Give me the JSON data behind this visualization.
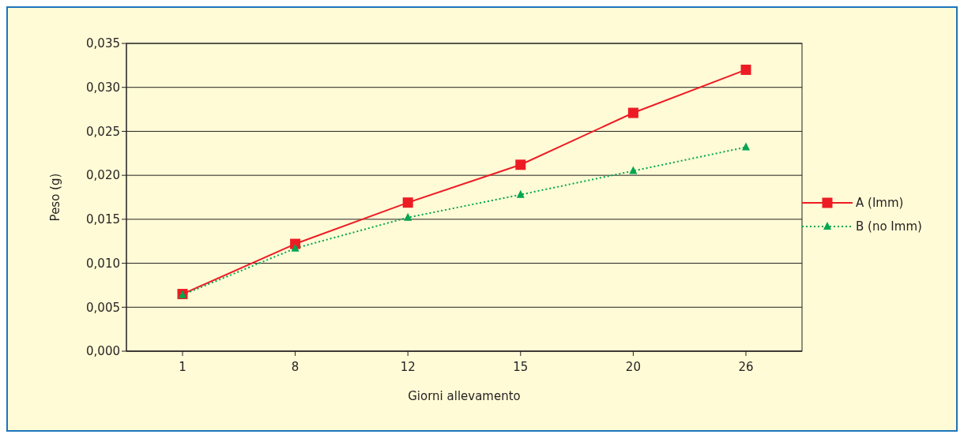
{
  "chart_data": {
    "type": "line",
    "xlabel": "Giorni allevamento",
    "ylabel": "Peso (g)",
    "categories": [
      "1",
      "8",
      "12",
      "15",
      "20",
      "26"
    ],
    "series": [
      {
        "name": "A (Imm)",
        "color": "#ed1c24",
        "marker": "square",
        "line_style": "solid",
        "values": [
          0.0065,
          0.0122,
          0.0169,
          0.0212,
          0.0271,
          0.032
        ]
      },
      {
        "name": "B (no Imm)",
        "color": "#00a651",
        "marker": "triangle",
        "line_style": "dotted",
        "values": [
          0.0064,
          0.0117,
          0.0152,
          0.0178,
          0.0205,
          0.0232
        ]
      }
    ],
    "ylim": [
      0,
      0.035
    ],
    "yticks": [
      {
        "value": 0,
        "label": "0,000"
      },
      {
        "value": 0.005,
        "label": "0,005"
      },
      {
        "value": 0.01,
        "label": "0,010"
      },
      {
        "value": 0.015,
        "label": "0,015"
      },
      {
        "value": 0.02,
        "label": "0,020"
      },
      {
        "value": 0.025,
        "label": "0,025"
      },
      {
        "value": 0.03,
        "label": "0,030"
      },
      {
        "value": 0.035,
        "label": "0,035"
      }
    ],
    "grid": "y",
    "legend": "right"
  }
}
